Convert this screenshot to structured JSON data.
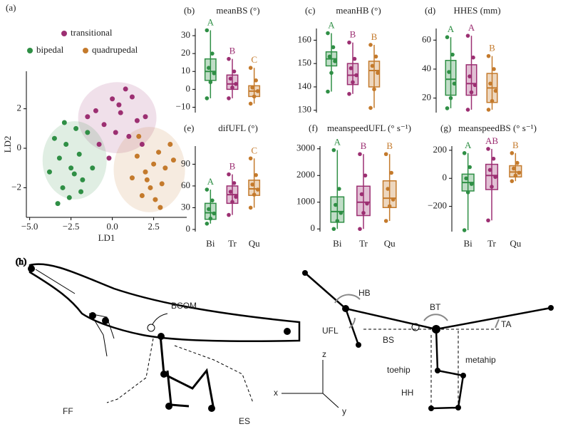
{
  "chart_data": [
    {
      "type": "scatter",
      "panel": "(a)",
      "xlabel": "LD1",
      "ylabel": "LD2",
      "xlim": [
        -5.2,
        4.5
      ],
      "ylim": [
        -3.5,
        3.9
      ],
      "xticks": [
        {
          "value": -5,
          "label": "−5.0"
        },
        {
          "value": -2.5,
          "label": "−2.5"
        },
        {
          "value": 0,
          "label": "0.0"
        },
        {
          "value": 2.5,
          "label": "2.5"
        }
      ],
      "yticks": [
        {
          "value": -2,
          "label": "−2"
        },
        0,
        2
      ],
      "series": [
        {
          "name": "transitional",
          "color": "#9c2f72",
          "x": [
            -1.0,
            -0.5,
            0,
            0.5,
            1.0,
            1.5,
            -0.8,
            0.2,
            1.2,
            2.0,
            -0.2,
            0.8,
            -1.5,
            1.8,
            0.4
          ],
          "y": [
            1.9,
            1.2,
            2.5,
            1.8,
            0.6,
            1.4,
            0.2,
            0.8,
            2.6,
            1.6,
            -0.5,
            3.0,
            1.6,
            0.2,
            2.2
          ],
          "ellipse": {
            "cx": 0.3,
            "cy": 1.55,
            "rx": 2.37,
            "ry": 1.8
          }
        },
        {
          "name": "bipedal",
          "color": "#2f8f45",
          "x": [
            -3.5,
            -3.2,
            -2.8,
            -2.5,
            -2.3,
            -2.0,
            -1.8,
            -3.0,
            -2.6,
            -1.5,
            -2.2,
            -3.8,
            -1.2,
            -2.9,
            -1.9,
            -3.3
          ],
          "y": [
            0.5,
            -0.5,
            0.2,
            -1.0,
            -1.3,
            -0.3,
            -1.6,
            -2.0,
            -2.5,
            0.8,
            1.0,
            -1.2,
            -1.0,
            1.3,
            -2.2,
            -2.8
          ],
          "ellipse": {
            "cx": -2.28,
            "cy": -0.61,
            "rx": 1.94,
            "ry": 1.98
          }
        },
        {
          "name": "quadrupedal",
          "color": "#c47a2c",
          "x": [
            1.5,
            2.0,
            2.5,
            3.0,
            2.3,
            3.5,
            1.8,
            2.8,
            1.2,
            3.2,
            2.6,
            1.6,
            3.7,
            2.1,
            2.9
          ],
          "y": [
            -0.4,
            -1.2,
            -0.8,
            -1.8,
            -2.0,
            0.2,
            -2.4,
            -0.2,
            -1.5,
            -1.0,
            -2.6,
            0.6,
            -0.6,
            -1.6,
            -3.0
          ],
          "ellipse": {
            "cx": 2.24,
            "cy": -1.08,
            "rx": 2.16,
            "ry": 2.16
          }
        }
      ]
    },
    {
      "type": "box",
      "panel": "(b)",
      "title": "meanBS (°)",
      "colors": [
        "#2f8f45",
        "#9c2f72",
        "#c47a2c"
      ],
      "ylim": [
        -13,
        34
      ],
      "yticks": [
        {
          "value": -10,
          "label": "−10"
        },
        0,
        10,
        20,
        30
      ],
      "letters": [
        "A",
        "B",
        "C"
      ],
      "boxes": [
        {
          "whislo": -5,
          "q1": 5,
          "med": 10,
          "q3": 17,
          "whishi": 33,
          "points": [
            -5,
            4,
            9,
            12,
            20,
            33
          ]
        },
        {
          "whislo": -5,
          "q1": 0,
          "med": 3,
          "q3": 8,
          "whishi": 17,
          "points": [
            -5,
            1,
            3,
            6,
            10,
            17
          ]
        },
        {
          "whislo": -8,
          "q1": -4,
          "med": -1,
          "q3": 2,
          "whishi": 12,
          "points": [
            -8,
            -4,
            -1,
            1,
            5,
            12
          ]
        }
      ]
    },
    {
      "type": "box",
      "panel": "(c)",
      "title": "meanHB (°)",
      "colors": [
        "#2f8f45",
        "#9c2f72",
        "#c47a2c"
      ],
      "ylim": [
        129,
        165
      ],
      "yticks": [
        130,
        140,
        150,
        160
      ],
      "letters": [
        "A",
        "B",
        "B"
      ],
      "boxes": [
        {
          "whislo": 138,
          "q1": 149,
          "med": 152,
          "q3": 155,
          "whishi": 163,
          "points": [
            138,
            146,
            151,
            153,
            157,
            163
          ]
        },
        {
          "whislo": 137,
          "q1": 141,
          "med": 145,
          "q3": 150,
          "whishi": 159,
          "points": [
            137,
            142,
            145,
            148,
            152,
            159
          ]
        },
        {
          "whislo": 131,
          "q1": 140,
          "med": 147,
          "q3": 151,
          "whishi": 158,
          "points": [
            131,
            139,
            146,
            149,
            153,
            158
          ]
        }
      ]
    },
    {
      "type": "box",
      "panel": "(d)",
      "title": "HHES (mm)",
      "colors": [
        "#2f8f45",
        "#9c2f72",
        "#c47a2c"
      ],
      "ylim": [
        10,
        68
      ],
      "yticks": [
        20,
        40,
        60
      ],
      "letters": [
        "A",
        "A",
        "B"
      ],
      "boxes": [
        {
          "whislo": 13,
          "q1": 22,
          "med": 33,
          "q3": 46,
          "whishi": 62,
          "points": [
            13,
            20,
            30,
            38,
            50,
            62
          ]
        },
        {
          "whislo": 12,
          "q1": 22,
          "med": 30,
          "q3": 43,
          "whishi": 63,
          "points": [
            12,
            24,
            29,
            35,
            48,
            63
          ]
        },
        {
          "whislo": 12,
          "q1": 17,
          "med": 27,
          "q3": 37,
          "whishi": 49,
          "points": [
            12,
            18,
            25,
            30,
            40,
            49
          ]
        }
      ]
    },
    {
      "type": "box",
      "panel": "(e)",
      "title": "difUFL (°)",
      "colors": [
        "#2f8f45",
        "#9c2f72",
        "#c47a2c"
      ],
      "categories": [
        "Bi",
        "Tr",
        "Qu"
      ],
      "ylim": [
        -3,
        115
      ],
      "yticks": [
        0,
        30,
        60,
        90
      ],
      "letters": [
        "A",
        "B",
        "C"
      ],
      "boxes": [
        {
          "whislo": 8,
          "q1": 14,
          "med": 23,
          "q3": 36,
          "whishi": 55,
          "points": [
            8,
            15,
            22,
            28,
            40,
            55
          ]
        },
        {
          "whislo": 20,
          "q1": 36,
          "med": 48,
          "q3": 60,
          "whishi": 76,
          "points": [
            20,
            38,
            45,
            52,
            64,
            76
          ]
        },
        {
          "whislo": 30,
          "q1": 47,
          "med": 56,
          "q3": 68,
          "whishi": 98,
          "points": [
            30,
            48,
            55,
            62,
            75,
            98
          ]
        }
      ]
    },
    {
      "type": "box",
      "panel": "(f)",
      "title": "meanspeedUFL (° s⁻¹)",
      "colors": [
        "#2f8f45",
        "#9c2f72",
        "#c47a2c"
      ],
      "categories": [
        "Bi",
        "Tr",
        "Qu"
      ],
      "ylim": [
        -100,
        3100
      ],
      "yticks": [
        0,
        1000,
        2000,
        3000
      ],
      "letters": [
        "A",
        "B",
        "B"
      ],
      "boxes": [
        {
          "whislo": 0,
          "q1": 250,
          "med": 650,
          "q3": 1200,
          "whishi": 2950,
          "points": [
            0,
            300,
            600,
            900,
            1500,
            2950
          ]
        },
        {
          "whislo": 0,
          "q1": 500,
          "med": 1000,
          "q3": 1600,
          "whishi": 2800,
          "points": [
            0,
            600,
            950,
            1300,
            2000,
            2800
          ]
        },
        {
          "whislo": 300,
          "q1": 800,
          "med": 1150,
          "q3": 1800,
          "whishi": 2800,
          "points": [
            300,
            850,
            1100,
            1500,
            2100,
            2800
          ]
        }
      ]
    },
    {
      "type": "box",
      "panel": "(g)",
      "title": "meanspeedBS (° s⁻¹)",
      "colors": [
        "#2f8f45",
        "#9c2f72",
        "#c47a2c"
      ],
      "categories": [
        "Bi",
        "Tr",
        "Qu"
      ],
      "ylim": [
        -380,
        230
      ],
      "yticks": [
        {
          "value": -200,
          "label": "−200"
        },
        0,
        200
      ],
      "letters": [
        "A",
        "AB",
        "B"
      ],
      "boxes": [
        {
          "whislo": -370,
          "q1": -90,
          "med": -30,
          "q3": 30,
          "whishi": 180,
          "points": [
            -370,
            -100,
            -40,
            0,
            80,
            180
          ]
        },
        {
          "whislo": -300,
          "q1": -80,
          "med": 20,
          "q3": 100,
          "whishi": 210,
          "points": [
            -300,
            -60,
            10,
            60,
            140,
            210
          ]
        },
        {
          "whislo": -20,
          "q1": 10,
          "med": 45,
          "q3": 90,
          "whishi": 180,
          "points": [
            -20,
            20,
            40,
            70,
            110,
            180
          ]
        }
      ]
    }
  ],
  "diagram": {
    "panel": "(h)",
    "labels": {
      "bcom": "BCOM",
      "ff": "FF",
      "es": "ES",
      "hb": "HB",
      "ufl": "UFL",
      "bs": "BS",
      "bt": "BT",
      "ta": "TA",
      "toehip": "toehip",
      "metahip": "metahip",
      "hh": "HH",
      "x": "x",
      "y": "y",
      "z": "z"
    }
  }
}
